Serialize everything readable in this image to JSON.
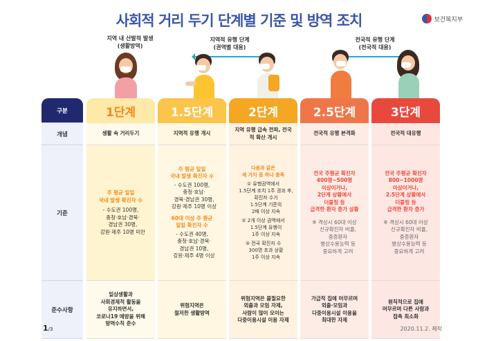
{
  "title": {
    "part1": "사회적 거리 두기",
    "part2": "단계별 기준 및 방역 조치"
  },
  "ministry": "보건복지부",
  "people": {
    "left_caption": [
      "지역 내 산발적 발생",
      "(생활방역)"
    ],
    "mid_caption": [
      "지역적 유행 단계",
      "(권역별 대응)"
    ],
    "right_caption": [
      "전국적 유행 단계",
      "(전국적 대응)"
    ]
  },
  "labels": {
    "header": "구분",
    "concept": "개념",
    "criteria": "기준",
    "rules": "준수사항"
  },
  "stages": [
    {
      "name": "1단계",
      "color": "#fbb928",
      "body_bg": "#fff7e0",
      "concept": "생활 속 거리두기",
      "criteria_hl": [
        "주 평균 일일",
        "국내 발생 확진자 수"
      ],
      "criteria_lines": [
        "- 수도권 100명,",
        "충청·호남·경북·",
        "경남권 30명,",
        "강원·제주 10명 미만"
      ],
      "rules": [
        "일상생활과",
        "사회경제적 활동을",
        "유지하면서,",
        "코로나19 예방을 위해",
        "방역수칙 준수"
      ]
    },
    {
      "name": "1.5단계",
      "color": "#f7b41f",
      "body_bg": "#fff5d6",
      "concept": "지역적 유행 개시",
      "criteria_hl": [
        "주 평균 일일",
        "국내 발생 확진자 수"
      ],
      "criteria_lines": [
        "- 수도권 100명,",
        "충청·호남·",
        "경북·경남권 30명,",
        "강원·제주 10명 이상"
      ],
      "criteria_hl2": [
        "60대 이상 주 평균",
        "일일 확진자 수"
      ],
      "criteria_lines2": [
        "- 수도권 40명,",
        "충청·호남·경북·",
        "경남권 10명,",
        "강원·제주 4명 이상"
      ],
      "rules": [
        "위험지역은",
        "철저한 생활방역"
      ]
    },
    {
      "name": "2단계",
      "color": "#f39a1c",
      "body_bg": "#fff0dc",
      "concept": "지역 유행 급속 전파, 전국적 확산 개시",
      "criteria_hl": [
        "다음과 같은",
        "세 가지 중 하나 충족"
      ],
      "criteria_lines": [
        "① 유행권역에서",
        "1.5단계 조치 1주 경과 후,",
        "확진자 수가",
        "1.5단계 기준의",
        "2배 이상 지속",
        "② 2개 이상 권역에서",
        "1.5단계 유행이",
        "1주 이상 지속",
        "③ 전국 확진자 수",
        "300명 초과 상황",
        "1주 이상 지속"
      ],
      "rules": [
        "위험지역은 불필요한",
        "외출과 모임 자제,",
        "사람이 많이 모이는",
        "다중이용시설 이용 자제"
      ]
    },
    {
      "name": "2.5단계",
      "color": "#f0764a",
      "body_bg": "#fde9e2",
      "concept": "전국적 유행 본격화",
      "criteria_hl": [
        "전국 주평균 확진자",
        "400명~500명",
        "이상이거나,",
        "2단계 상황에서",
        "더블링 등",
        "급격한 환자 증가 상황"
      ],
      "criteria_lines": [
        "※ 격상시 60대 이상",
        "신규확진자 비율,",
        "중증환자",
        "병상수용능력 등",
        "중요하게 고려"
      ],
      "rules": [
        "가급적 집에 머무르며",
        "외출·모임과",
        "다중이용시설 이용을",
        "최대한 자제"
      ]
    },
    {
      "name": "3단계",
      "color": "#e9483d",
      "body_bg": "#fde4e0",
      "concept": "전국적 대유행",
      "criteria_hl": [
        "전국 주평균 확진자",
        "800~1000명",
        "이상이거나,",
        "2.5단계 상황에서",
        "더블링 등",
        "급격한 환자 증가"
      ],
      "criteria_lines": [
        "※ 격상시 60대 이상",
        "신규확진자 비율,",
        "중증환자",
        "병상수용능력 등",
        "중요하게 고려"
      ],
      "rules": [
        "원칙적으로 집에",
        "머무르며 다른 사람과",
        "접촉 최소화"
      ]
    }
  ],
  "footer": {
    "page": "1",
    "total": "/3",
    "date": "2020.11.2. 제작"
  },
  "colors": {
    "navy": "#20296d",
    "blue": "#3a56a8",
    "orange": "#f08a1c",
    "teal": "#2aa7c4",
    "highlight_orange": "#f08a1c",
    "highlight_red": "#e9483d"
  }
}
